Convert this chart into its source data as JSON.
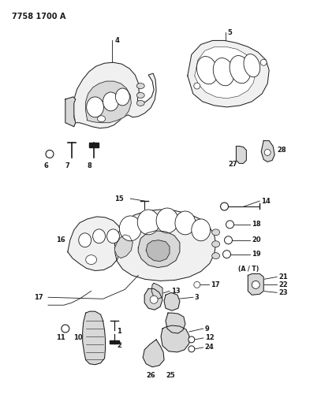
{
  "title": "7758 1700 A",
  "bg_color": "#ffffff",
  "text_color": "#000000",
  "fig_width": 4.27,
  "fig_height": 5.33,
  "dpi": 100,
  "line_color": "#1a1a1a",
  "fill_light": "#f0f0f0",
  "fill_mid": "#d8d8d8",
  "fill_dark": "#bbbbbb",
  "font_size_label": 6,
  "font_size_title": 7
}
